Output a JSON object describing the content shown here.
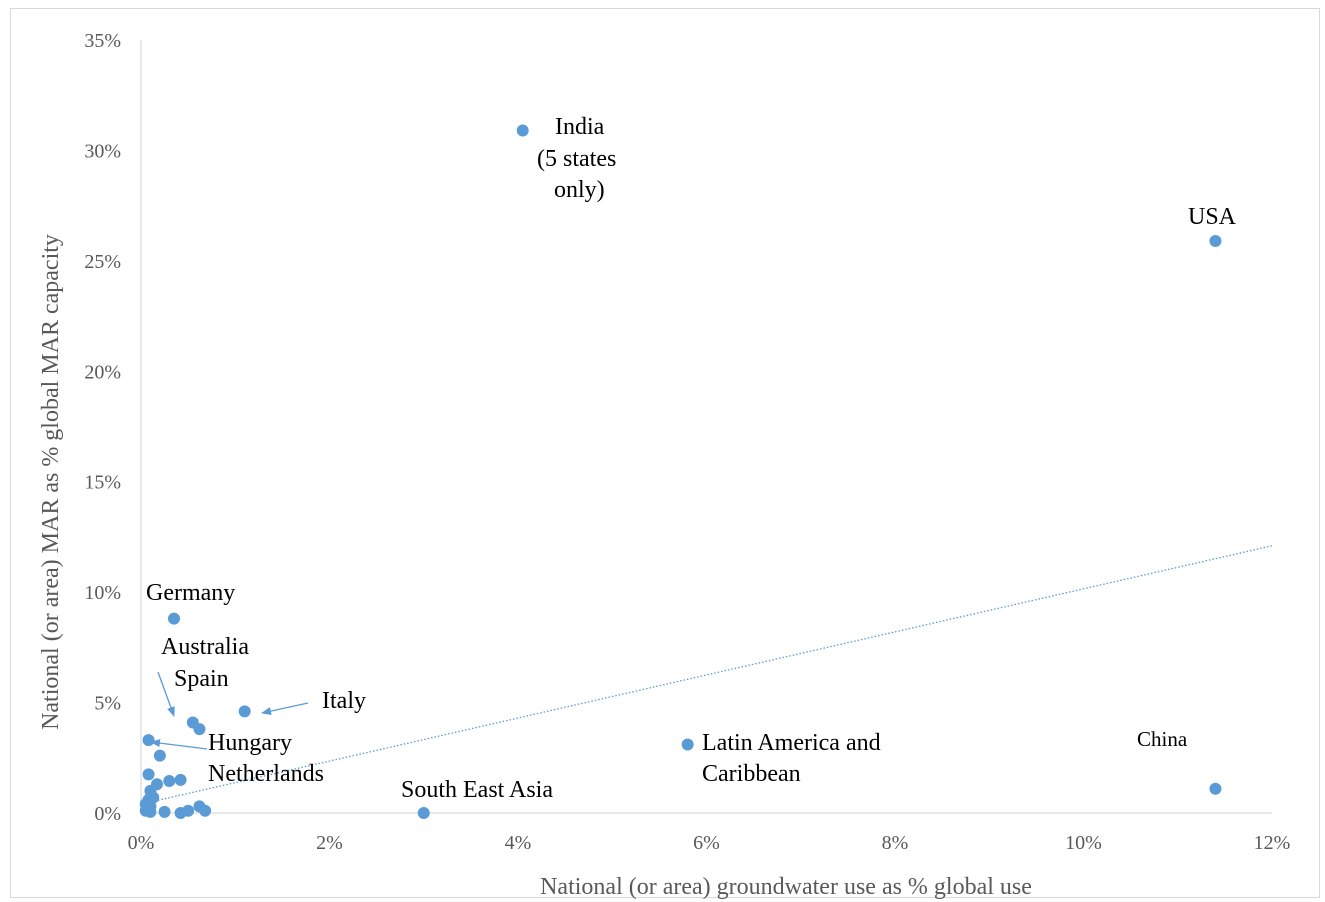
{
  "chart_data": {
    "type": "scatter",
    "title": "",
    "xlabel": "National (or area) groundwater use as % global use",
    "ylabel": "National (or area) MAR as % global  MAR capacity",
    "xlim": [
      0,
      12
    ],
    "ylim": [
      0,
      35
    ],
    "x_ticks": [
      0,
      2,
      4,
      6,
      8,
      10,
      12
    ],
    "x_tick_labels": [
      "0%",
      "2%",
      "4%",
      "6%",
      "8%",
      "10%",
      "12%"
    ],
    "y_ticks": [
      0,
      5,
      10,
      15,
      20,
      25,
      30,
      35
    ],
    "y_tick_labels": [
      "0%",
      "5%",
      "10%",
      "15%",
      "20%",
      "25%",
      "30%",
      "35%"
    ],
    "grid": false,
    "marker_color": "#5B9BD5",
    "trendline": {
      "color": "#5B9BD5",
      "style": "dotted",
      "x": [
        0,
        12
      ],
      "y": [
        0.4,
        12.1
      ]
    },
    "series": [
      {
        "points": [
          [
            4.05,
            30.9
          ],
          [
            11.4,
            25.9
          ],
          [
            0.35,
            8.8
          ],
          [
            1.1,
            4.6
          ],
          [
            0.55,
            4.1
          ],
          [
            0.62,
            3.8
          ],
          [
            0.08,
            3.3
          ],
          [
            0.2,
            2.6
          ],
          [
            0.08,
            1.75
          ],
          [
            0.17,
            1.3
          ],
          [
            0.3,
            1.45
          ],
          [
            0.42,
            1.5
          ],
          [
            0.1,
            1.0
          ],
          [
            0.13,
            0.7
          ],
          [
            0.08,
            0.6
          ],
          [
            0.05,
            0.4
          ],
          [
            0.1,
            0.3
          ],
          [
            0.05,
            0.1
          ],
          [
            0.1,
            0.05
          ],
          [
            0.25,
            0.05
          ],
          [
            0.42,
            0.0
          ],
          [
            0.5,
            0.1
          ],
          [
            0.62,
            0.3
          ],
          [
            0.68,
            0.1
          ],
          [
            3.0,
            0.0
          ],
          [
            5.8,
            3.1
          ],
          [
            11.4,
            1.1
          ]
        ]
      }
    ],
    "annotations": [
      {
        "text": "India",
        "x": 4.05,
        "y": 30.9
      },
      {
        "text": "(5 states",
        "x": 4.05,
        "y": 30.9
      },
      {
        "text": "only)",
        "x": 4.05,
        "y": 30.9
      },
      {
        "text": "USA",
        "x": 11.4,
        "y": 25.9
      },
      {
        "text": "Germany",
        "x": 0.35,
        "y": 8.8
      },
      {
        "text": "Australia",
        "x": 0.55,
        "y": 4.1
      },
      {
        "text": "Spain",
        "x": 0.55,
        "y": 4.1
      },
      {
        "text": "Italy",
        "x": 1.1,
        "y": 4.6
      },
      {
        "text": "Hungary",
        "x": 0.08,
        "y": 3.3
      },
      {
        "text": "Netherlands",
        "x": 0.08,
        "y": 3.3
      },
      {
        "text": "South East Asia",
        "x": 3.0,
        "y": 0.0
      },
      {
        "text": "Latin America and",
        "x": 5.8,
        "y": 3.1
      },
      {
        "text": "Caribbean",
        "x": 5.8,
        "y": 3.1
      },
      {
        "text": "China",
        "x": 11.4,
        "y": 1.1
      }
    ]
  }
}
